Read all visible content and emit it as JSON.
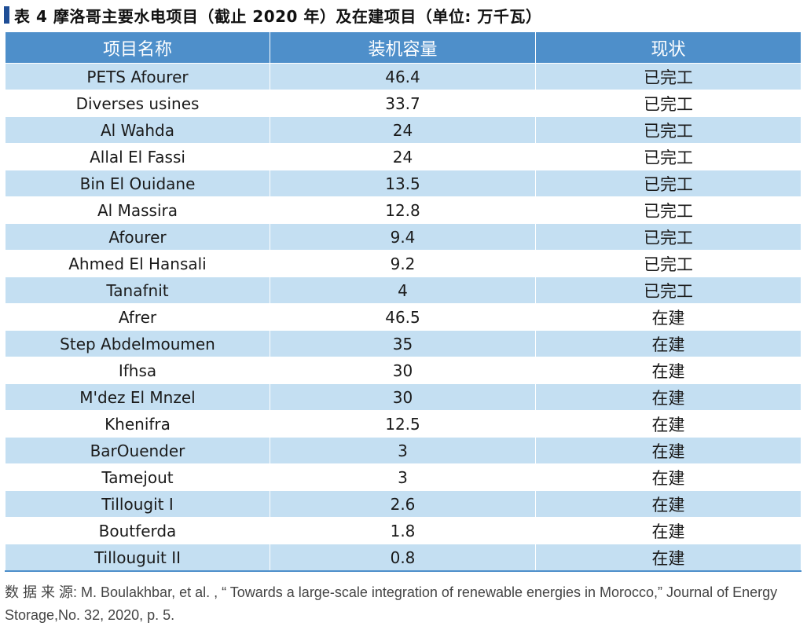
{
  "title": "表 4  摩洛哥主要水电项目（截止 2020 年）及在建项目（单位: 万千瓦）",
  "table": {
    "headers": [
      "项目名称",
      "装机容量",
      "现状"
    ],
    "rows": [
      {
        "name": "PETS Afourer",
        "capacity": "46.4",
        "status": "已完工"
      },
      {
        "name": "Diverses usines",
        "capacity": "33.7",
        "status": "已完工"
      },
      {
        "name": "Al Wahda",
        "capacity": "24",
        "status": "已完工"
      },
      {
        "name": "Allal El Fassi",
        "capacity": "24",
        "status": "已完工"
      },
      {
        "name": "Bin El Ouidane",
        "capacity": "13.5",
        "status": "已完工"
      },
      {
        "name": "Al Massira",
        "capacity": "12.8",
        "status": "已完工"
      },
      {
        "name": "Afourer",
        "capacity": "9.4",
        "status": "已完工"
      },
      {
        "name": "Ahmed El Hansali",
        "capacity": "9.2",
        "status": "已完工"
      },
      {
        "name": "Tanafnit",
        "capacity": "4",
        "status": "已完工"
      },
      {
        "name": "Afrer",
        "capacity": "46.5",
        "status": "在建"
      },
      {
        "name": "Step Abdelmoumen",
        "capacity": "35",
        "status": "在建"
      },
      {
        "name": "Ifhsa",
        "capacity": "30",
        "status": "在建"
      },
      {
        "name": "M'dez El Mnzel",
        "capacity": "30",
        "status": "在建"
      },
      {
        "name": "Khenifra",
        "capacity": "12.5",
        "status": "在建"
      },
      {
        "name": "BarOuender",
        "capacity": "3",
        "status": "在建"
      },
      {
        "name": "Tamejout",
        "capacity": "3",
        "status": "在建"
      },
      {
        "name": "Tillougit I",
        "capacity": "2.6",
        "status": "在建"
      },
      {
        "name": "Boutferda",
        "capacity": "1.8",
        "status": "在建"
      },
      {
        "name": "Tillouguit II",
        "capacity": "0.8",
        "status": "在建"
      }
    ]
  },
  "source": {
    "text": "数 据 来 源: M. Boulakhbar, et al. , “ Towards a large-scale integration of renewable energies in Morocco,” Journal of Energy Storage,No. 32, 2020, p. 5."
  },
  "colors": {
    "header_bg": "#4e8fca",
    "stripe_bg": "#c4dff2",
    "title_marker": "#1f4e96"
  }
}
